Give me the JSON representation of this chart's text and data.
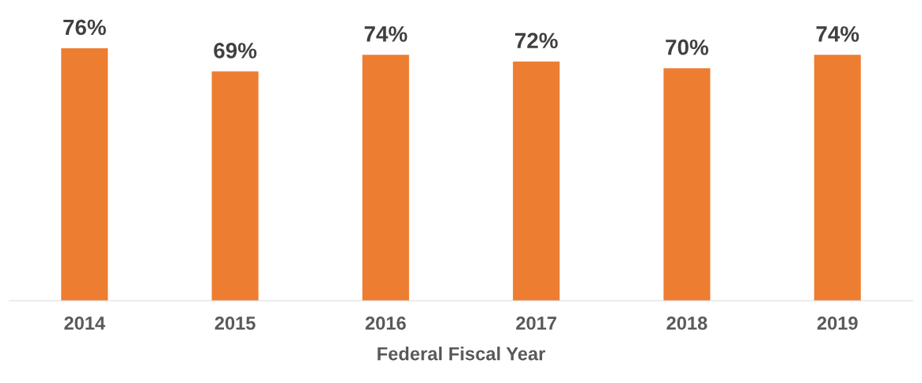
{
  "chart_data": {
    "type": "bar",
    "xlabel": "Federal Fiscal Year",
    "categories": [
      "2014",
      "2015",
      "2016",
      "2017",
      "2018",
      "2019"
    ],
    "values": [
      76,
      69,
      74,
      72,
      70,
      74
    ],
    "value_labels": [
      "76%",
      "69%",
      "74%",
      "72%",
      "70%",
      "74%"
    ],
    "color": "#ed7d31",
    "tick_labels": "x",
    "grid": false,
    "legend": false
  }
}
